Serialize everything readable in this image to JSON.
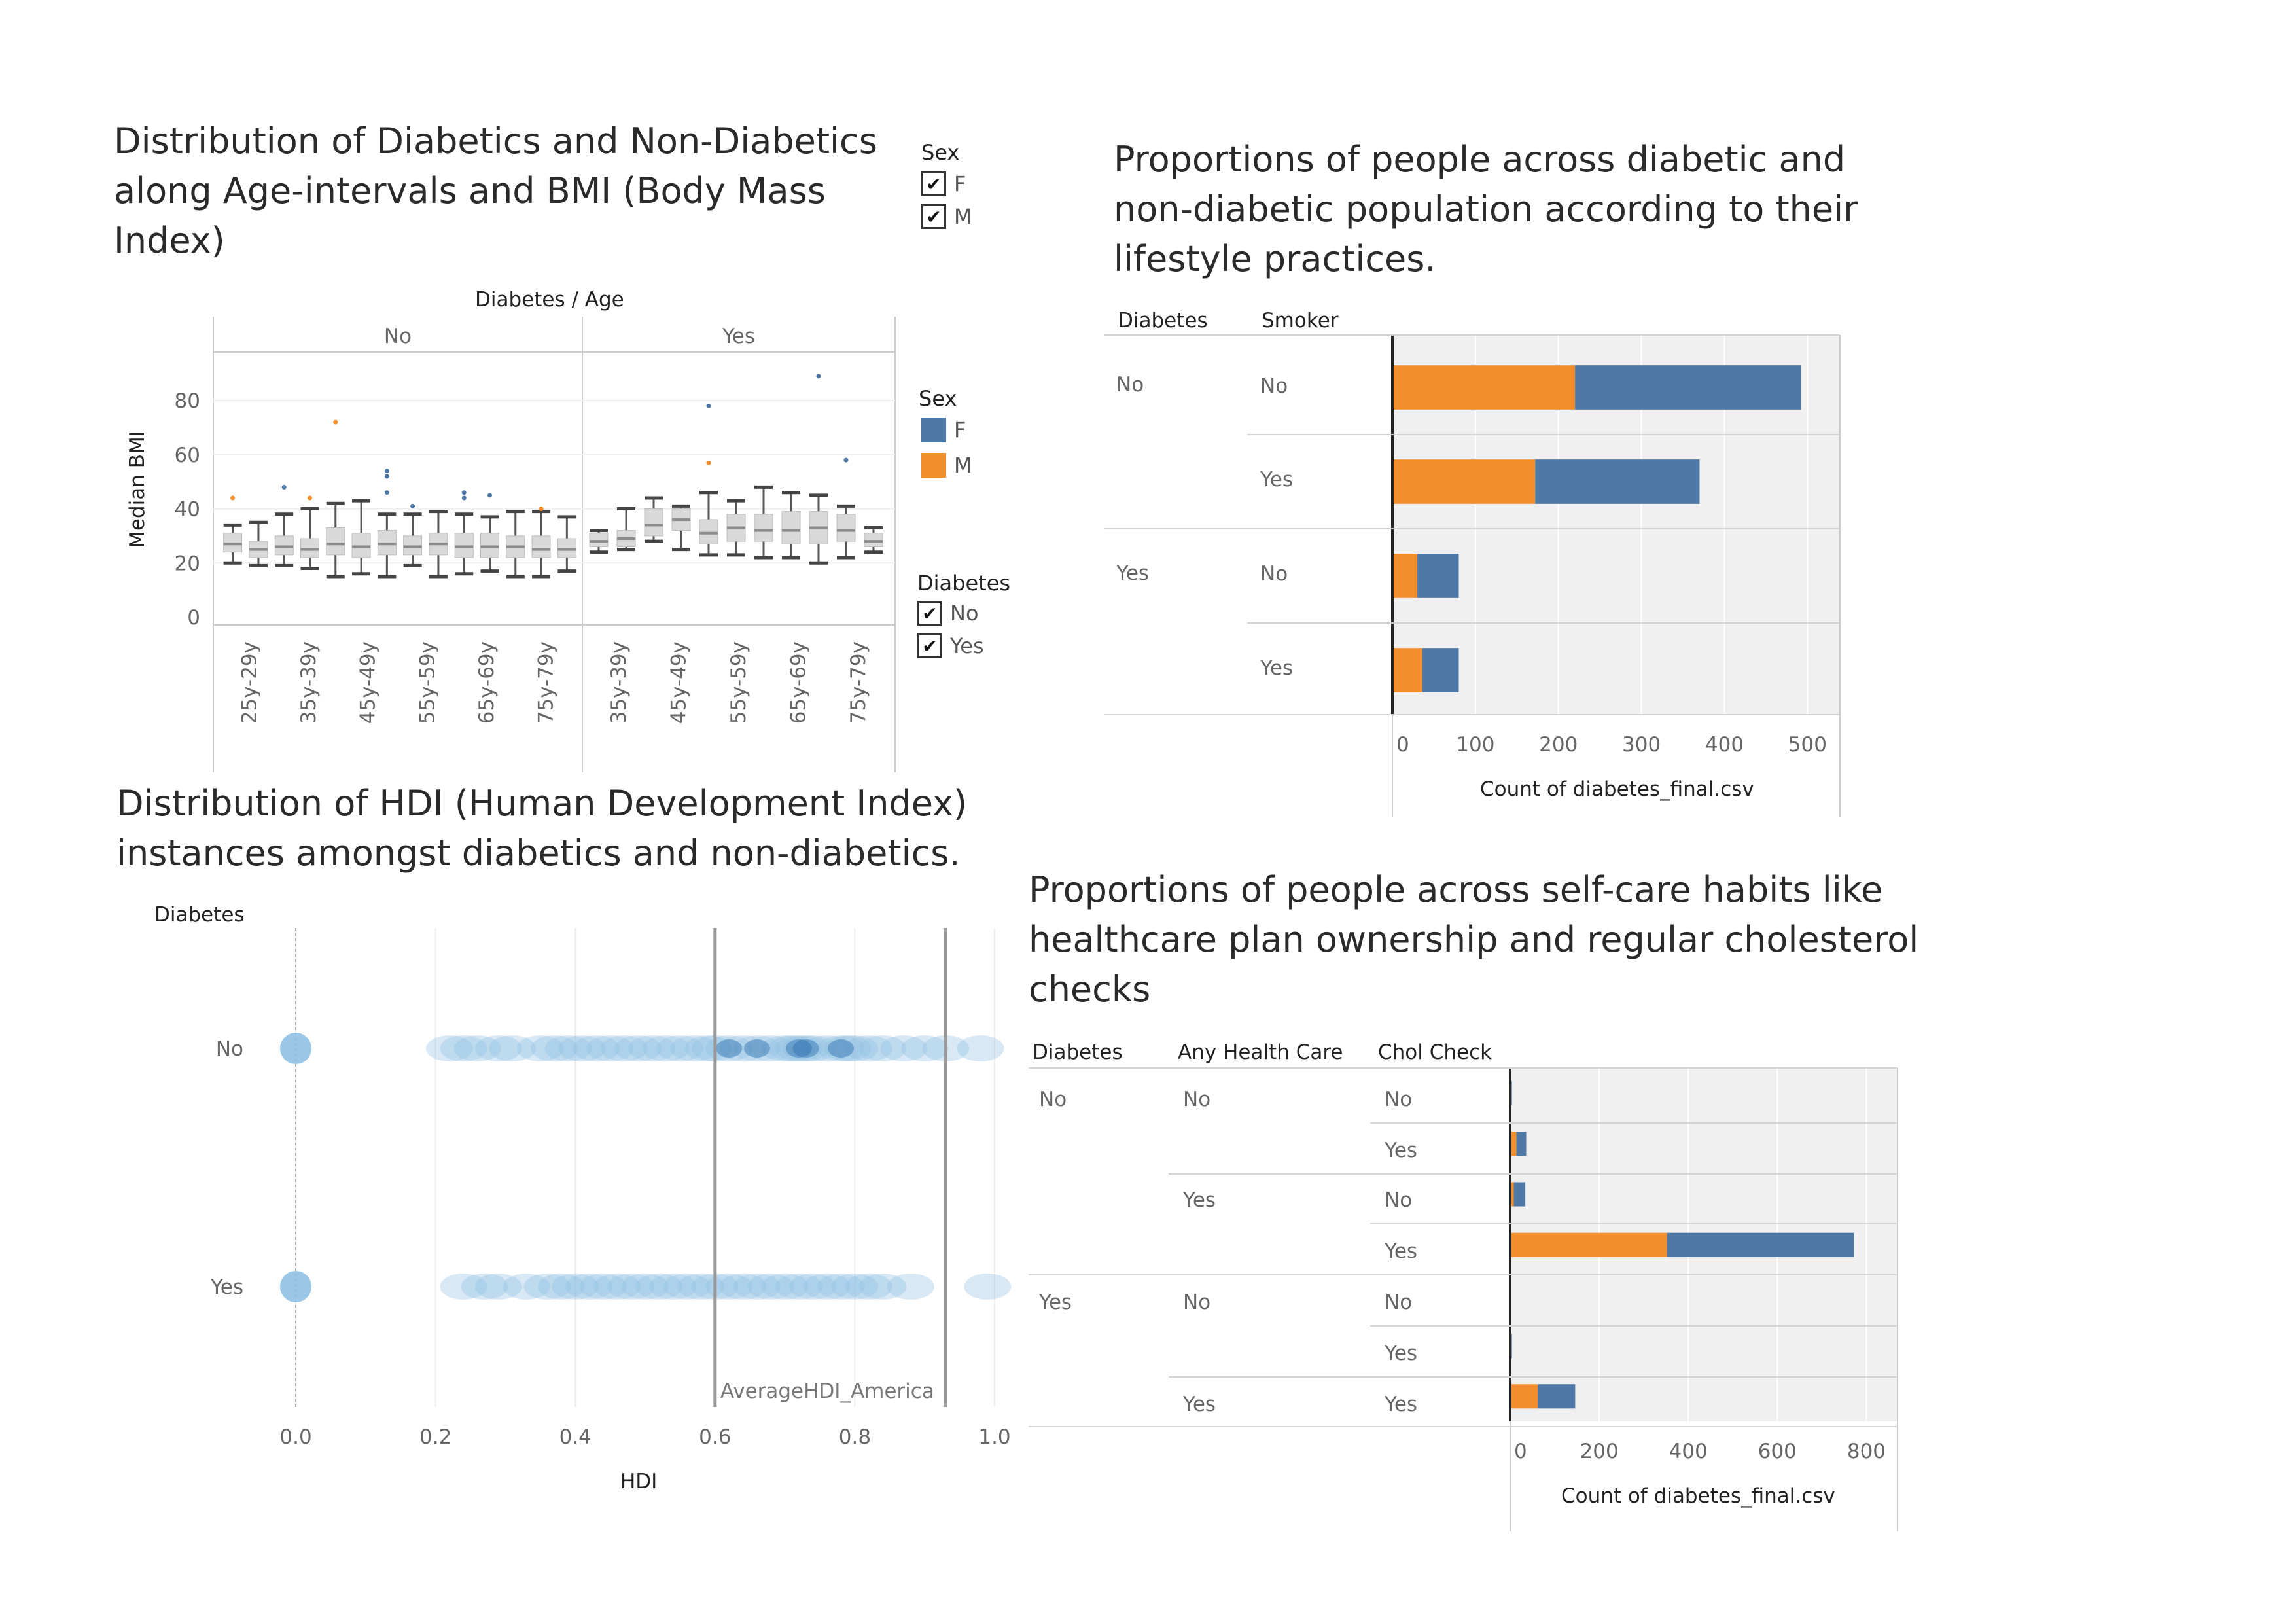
{
  "panels": {
    "bmi": {
      "title": "Distribution of Diabetics and Non-Diabetics\nalong Age-intervals and BMI (Body Mass\nIndex)",
      "header": "Diabetes  /  Age",
      "ylabel": "Median BMI"
    },
    "smoker": {
      "title": "Proportions of people across diabetic and\nnon-diabetic population according to their\nlifestyle practices.",
      "col_diabetes": "Diabetes",
      "col_smoker": "Smoker",
      "xlabel": "Count of diabetes_final.csv"
    },
    "hdi": {
      "title": "Distribution of  HDI (Human Development Index)\ninstances amongst diabetics and non-diabetics.",
      "col_diabetes": "Diabetes",
      "xlabel": "HDI",
      "reference_label": "AverageHDI_America"
    },
    "selfcare": {
      "title": "Proportions of people across self-care habits like\nhealthcare plan ownership and regular cholesterol\nchecks",
      "col_diabetes": "Diabetes",
      "col_health": "Any Health Care",
      "col_chol": "Chol Check",
      "xlabel": "Count of diabetes_final.csv"
    }
  },
  "legends": {
    "sex_filter": {
      "title": "Sex",
      "items": [
        "F",
        "M"
      ]
    },
    "sex_color": {
      "title": "Sex",
      "items": [
        {
          "label": "F",
          "color": "#4e79a7"
        },
        {
          "label": "M",
          "color": "#f28e2b"
        }
      ]
    },
    "diabetes_filter": {
      "title": "Diabetes",
      "items": [
        "No",
        "Yes"
      ]
    }
  },
  "colors": {
    "F": "#4e79a7",
    "M": "#f28e2b",
    "hdi": "#8fc1e3",
    "hdi_dense": "#2c6fae"
  },
  "chart_data": [
    {
      "type": "box",
      "title": "Distribution of Diabetics and Non-Diabetics along Age-intervals and BMI (Body Mass Index)",
      "ylabel": "Median BMI",
      "y_ticks": [
        0,
        20,
        40,
        60,
        80
      ],
      "ylim": [
        0,
        95
      ],
      "panes": [
        {
          "name": "No",
          "boxes": [
            {
              "lo": 20,
              "q1": 24,
              "med": 27,
              "q3": 31,
              "hi": 34
            },
            {
              "lo": 19,
              "q1": 22,
              "med": 25,
              "q3": 28,
              "hi": 35
            },
            {
              "lo": 19,
              "q1": 23,
              "med": 26,
              "q3": 30,
              "hi": 38
            },
            {
              "lo": 18,
              "q1": 22,
              "med": 25,
              "q3": 29,
              "hi": 40
            },
            {
              "lo": 15,
              "q1": 23,
              "med": 27,
              "q3": 33,
              "hi": 42
            },
            {
              "lo": 16,
              "q1": 22,
              "med": 26,
              "q3": 31,
              "hi": 43
            },
            {
              "lo": 15,
              "q1": 23,
              "med": 27,
              "q3": 32,
              "hi": 38
            },
            {
              "lo": 19,
              "q1": 23,
              "med": 26,
              "q3": 30,
              "hi": 38
            },
            {
              "lo": 15,
              "q1": 23,
              "med": 27,
              "q3": 31,
              "hi": 39
            },
            {
              "lo": 16,
              "q1": 22,
              "med": 26,
              "q3": 31,
              "hi": 38
            },
            {
              "lo": 17,
              "q1": 22,
              "med": 26,
              "q3": 31,
              "hi": 37
            },
            {
              "lo": 15,
              "q1": 22,
              "med": 26,
              "q3": 30,
              "hi": 39
            },
            {
              "lo": 15,
              "q1": 22,
              "med": 25,
              "q3": 30,
              "hi": 39
            },
            {
              "lo": 17,
              "q1": 22,
              "med": 25,
              "q3": 29,
              "hi": 37
            }
          ],
          "outliers": [
            {
              "i": 0,
              "y": 44,
              "s": "M"
            },
            {
              "i": 2,
              "y": 48,
              "s": "F"
            },
            {
              "i": 3,
              "y": 44,
              "s": "M"
            },
            {
              "i": 4,
              "y": 72,
              "s": "M"
            },
            {
              "i": 6,
              "y": 54,
              "s": "F"
            },
            {
              "i": 6,
              "y": 52,
              "s": "F"
            },
            {
              "i": 6,
              "y": 46,
              "s": "F"
            },
            {
              "i": 7,
              "y": 41,
              "s": "F"
            },
            {
              "i": 9,
              "y": 46,
              "s": "F"
            },
            {
              "i": 9,
              "y": 44,
              "s": "F"
            },
            {
              "i": 10,
              "y": 45,
              "s": "F"
            },
            {
              "i": 12,
              "y": 40,
              "s": "M"
            }
          ]
        },
        {
          "name": "Yes",
          "boxes": [
            {
              "lo": 24,
              "q1": 26,
              "med": 28,
              "q3": 31,
              "hi": 32
            },
            {
              "lo": 25,
              "q1": 26,
              "med": 29,
              "q3": 32,
              "hi": 40
            },
            {
              "lo": 28,
              "q1": 30,
              "med": 34,
              "q3": 40,
              "hi": 44
            },
            {
              "lo": 25,
              "q1": 32,
              "med": 36,
              "q3": 40,
              "hi": 41
            },
            {
              "lo": 23,
              "q1": 27,
              "med": 31,
              "q3": 36,
              "hi": 46
            },
            {
              "lo": 23,
              "q1": 28,
              "med": 33,
              "q3": 38,
              "hi": 43
            },
            {
              "lo": 22,
              "q1": 28,
              "med": 32,
              "q3": 38,
              "hi": 48
            },
            {
              "lo": 22,
              "q1": 27,
              "med": 32,
              "q3": 39,
              "hi": 46
            },
            {
              "lo": 20,
              "q1": 27,
              "med": 33,
              "q3": 39,
              "hi": 45
            },
            {
              "lo": 22,
              "q1": 28,
              "med": 32,
              "q3": 38,
              "hi": 41
            },
            {
              "lo": 24,
              "q1": 26,
              "med": 28,
              "q3": 31,
              "hi": 33
            }
          ],
          "outliers": [
            {
              "i": 4,
              "y": 78,
              "s": "F"
            },
            {
              "i": 4,
              "y": 57,
              "s": "M"
            },
            {
              "i": 8,
              "y": 89,
              "s": "F"
            },
            {
              "i": 9,
              "y": 58,
              "s": "F"
            }
          ]
        }
      ],
      "tick_labels": {
        "No": [
          "25y-29y",
          "35y-39y",
          "45y-49y",
          "55y-59y",
          "65y-69y",
          "75y-79y"
        ],
        "Yes": [
          "35y-39y",
          "45y-49y",
          "55y-59y",
          "65y-69y",
          "75y-79y"
        ]
      }
    },
    {
      "type": "bar",
      "stacked": true,
      "orientation": "horizontal",
      "title": "Proportions of people across diabetic and non-diabetic population according to their lifestyle practices.",
      "xlabel": "Count of diabetes_final.csv",
      "x_ticks": [
        0,
        100,
        200,
        300,
        400,
        500
      ],
      "xlim": [
        0,
        510
      ],
      "rows": [
        {
          "diabetes": "No",
          "smoker": "No",
          "M": 220,
          "F": 272
        },
        {
          "diabetes": "",
          "smoker": "Yes",
          "M": 172,
          "F": 198
        },
        {
          "diabetes": "Yes",
          "smoker": "No",
          "M": 30,
          "F": 50
        },
        {
          "diabetes": "",
          "smoker": "Yes",
          "M": 36,
          "F": 44
        }
      ]
    },
    {
      "type": "scatter",
      "title": "Distribution of HDI (Human Development Index) instances amongst diabetics and non-diabetics.",
      "xlabel": "HDI",
      "x_ticks": [
        "0.0",
        "0.2",
        "0.4",
        "0.6",
        "0.8",
        "1.0"
      ],
      "xlim": [
        -0.06,
        1.0
      ],
      "reference_lines": [
        0.6,
        0.93
      ],
      "reference_label": "AverageHDI_America",
      "categories": [
        "No",
        "Yes"
      ],
      "no": [
        0.0,
        0.22,
        0.24,
        0.26,
        0.29,
        0.31,
        0.35,
        0.37,
        0.39,
        0.41,
        0.43,
        0.45,
        0.47,
        0.49,
        0.51,
        0.53,
        0.55,
        0.57,
        0.59,
        0.6,
        0.62,
        0.64,
        0.66,
        0.68,
        0.7,
        0.71,
        0.72,
        0.73,
        0.74,
        0.76,
        0.78,
        0.79,
        0.8,
        0.82,
        0.84,
        0.87,
        0.9,
        0.93,
        0.98
      ],
      "yes": [
        0.0,
        0.24,
        0.27,
        0.29,
        0.33,
        0.36,
        0.38,
        0.4,
        0.42,
        0.44,
        0.46,
        0.48,
        0.5,
        0.52,
        0.54,
        0.56,
        0.58,
        0.6,
        0.62,
        0.64,
        0.66,
        0.68,
        0.7,
        0.72,
        0.74,
        0.76,
        0.78,
        0.8,
        0.82,
        0.84,
        0.88,
        0.99
      ]
    },
    {
      "type": "bar",
      "stacked": true,
      "orientation": "horizontal",
      "title": "Proportions of people across self-care habits like healthcare plan ownership and regular cholesterol checks",
      "xlabel": "Count of diabetes_final.csv",
      "x_ticks": [
        0,
        200,
        400,
        600,
        800
      ],
      "xlim": [
        0,
        820
      ],
      "rows": [
        {
          "diabetes": "No",
          "health": "No",
          "chol": "No",
          "M": 0,
          "F": 4
        },
        {
          "diabetes": "",
          "health": "",
          "chol": "Yes",
          "M": 14,
          "F": 22
        },
        {
          "diabetes": "",
          "health": "Yes",
          "chol": "No",
          "M": 8,
          "F": 26
        },
        {
          "diabetes": "",
          "health": "",
          "chol": "Yes",
          "M": 352,
          "F": 420
        },
        {
          "diabetes": "Yes",
          "health": "No",
          "chol": "No",
          "M": 0,
          "F": 0
        },
        {
          "diabetes": "",
          "health": "",
          "chol": "Yes",
          "M": 0,
          "F": 4
        },
        {
          "diabetes": "",
          "health": "Yes",
          "chol": "Yes",
          "M": 62,
          "F": 84
        }
      ]
    }
  ]
}
